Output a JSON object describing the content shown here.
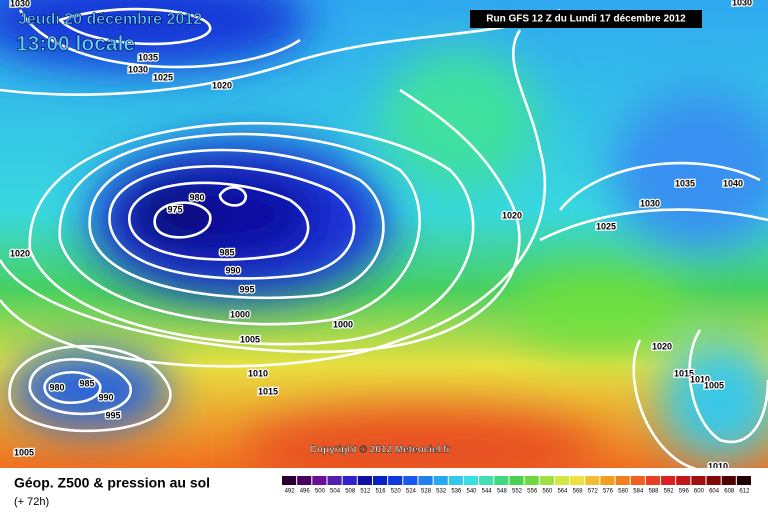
{
  "header": {
    "date": "Jeudi 20 décembre 2012",
    "time": "13:00 locale",
    "run": "Run GFS 12 Z du Lundi 17 décembre 2012"
  },
  "copyright": "Copyright © 2012 Meteociel.fr",
  "legend": {
    "title": "Géop. Z500 & pression au sol",
    "lead": "(+ 72h)",
    "levels": [
      492,
      496,
      500,
      504,
      508,
      512,
      516,
      520,
      524,
      528,
      532,
      536,
      540,
      544,
      548,
      552,
      556,
      560,
      564,
      568,
      572,
      576,
      580,
      584,
      588,
      592,
      596,
      600,
      604,
      608,
      612
    ],
    "colors": [
      "#2a0030",
      "#4a0060",
      "#6a1090",
      "#5020b0",
      "#3020d0",
      "#1010a0",
      "#0820c8",
      "#1038e0",
      "#1858f0",
      "#2080f0",
      "#28a8f0",
      "#30c8f0",
      "#38e0e0",
      "#40e0b0",
      "#40d880",
      "#48d050",
      "#70d840",
      "#a0e040",
      "#d0e840",
      "#f0e040",
      "#f0c030",
      "#f0a020",
      "#f08020",
      "#f06020",
      "#e84020",
      "#e02020",
      "#c01818",
      "#a01010",
      "#800808",
      "#500404",
      "#200000"
    ]
  },
  "isobars": [
    "1030",
    "1035",
    "1030",
    "1025",
    "1020",
    "980",
    "975",
    "985",
    "990",
    "995",
    "1000",
    "1000",
    "1005",
    "1010",
    "1015",
    "1020",
    "980",
    "985",
    "990",
    "995",
    "1005",
    "1020",
    "1025",
    "1030",
    "1035",
    "1040",
    "1020",
    "1015",
    "1010",
    "1005",
    "1010",
    "1030"
  ]
}
